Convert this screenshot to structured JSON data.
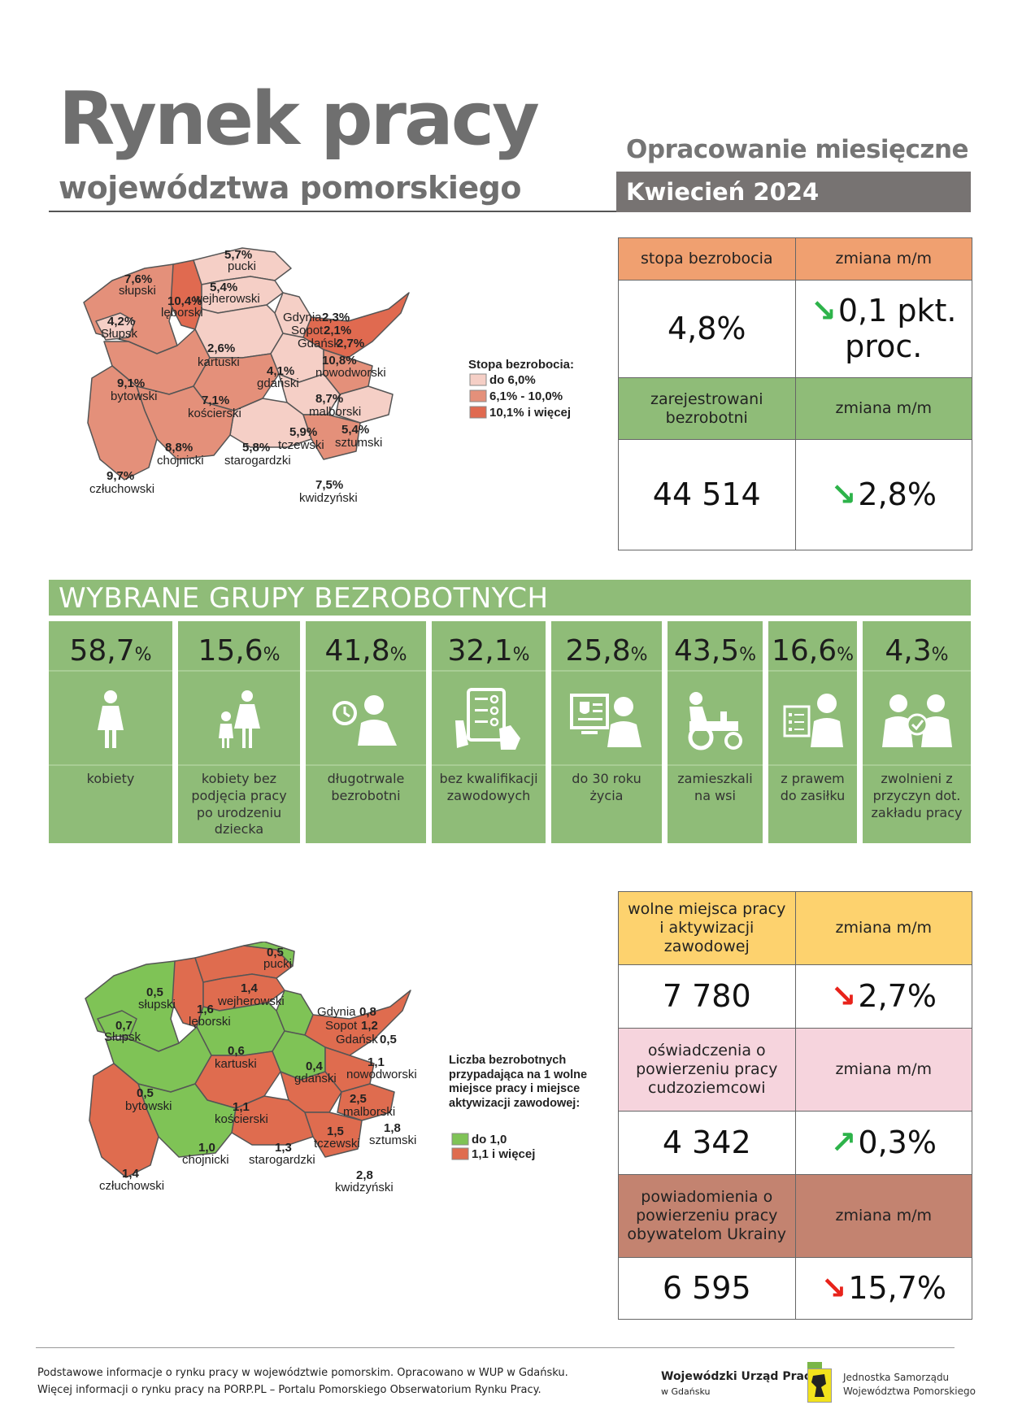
{
  "header": {
    "title": "Rynek pracy",
    "subtitle": "województwa pomorskiego",
    "report_type": "Opracowanie miesięczne",
    "month": "Kwiecień 2024"
  },
  "unemployment_table": {
    "rate_label": "stopa bezrobocia",
    "change_label": "zmiana m/m",
    "rate_value": "4,8%",
    "rate_change": "0,1 pkt. proc.",
    "registered_label": "zarejestrowani bezrobotni",
    "registered_change_label": "zmiana m/m",
    "registered_value": "44 514",
    "registered_change": "2,8%",
    "colors": {
      "orange": "#f0a070",
      "green": "#8fbc78",
      "arrow_down_green": "#2db34a"
    }
  },
  "map1": {
    "legend_title": "Stopa bezrobocia:",
    "legend": [
      "do 6,0%",
      "6,1% - 10,0%",
      "10,1% i więcej"
    ],
    "legend_colors": [
      "#f5cfc6",
      "#e4907a",
      "#e06a50"
    ],
    "regions": [
      {
        "name": "pucki",
        "value": "5,7%"
      },
      {
        "name": "wejherowski",
        "value": "5,4%"
      },
      {
        "name": "słupski",
        "value": "7,6%"
      },
      {
        "name": "lęborski",
        "value": "10,4%"
      },
      {
        "name": "Słupsk",
        "value": "4,2%"
      },
      {
        "name": "Gdynia",
        "value": "2,3%"
      },
      {
        "name": "Sopot",
        "value": "2,1%"
      },
      {
        "name": "Gdańsk",
        "value": "2,7%"
      },
      {
        "name": "kartuski",
        "value": "2,6%"
      },
      {
        "name": "nowodworski",
        "value": "10,8%"
      },
      {
        "name": "bytowski",
        "value": "9,1%"
      },
      {
        "name": "gdański",
        "value": "4,1%"
      },
      {
        "name": "kościerski",
        "value": "7,1%"
      },
      {
        "name": "malborski",
        "value": "8,7%"
      },
      {
        "name": "tczewski",
        "value": "5,9%"
      },
      {
        "name": "sztumski",
        "value": "5,4%"
      },
      {
        "name": "chojnicki",
        "value": "8,8%"
      },
      {
        "name": "starogardzki",
        "value": "5,8%"
      },
      {
        "name": "człuchowski",
        "value": "9,7%"
      },
      {
        "name": "kwidzyński",
        "value": "7,5%"
      }
    ]
  },
  "groups": {
    "title": "WYBRANE GRUPY BEZROBOTNYCH",
    "items": [
      {
        "value": "58,7",
        "unit": "%",
        "label": "kobiety",
        "icon": "woman-icon"
      },
      {
        "value": "15,6",
        "unit": "%",
        "label": "kobiety bez podjęcia pracy po urodzeniu dziecka",
        "icon": "mother-child-icon"
      },
      {
        "value": "41,8",
        "unit": "%",
        "label": "długotrwale bezrobotni",
        "icon": "clock-person-icon"
      },
      {
        "value": "32,1",
        "unit": "%",
        "label": "bez kwalifikacji zawodowych",
        "icon": "checklist-hand-icon"
      },
      {
        "value": "25,8",
        "unit": "%",
        "label": "do 30 roku życia",
        "icon": "young-person-computer-icon"
      },
      {
        "value": "43,5",
        "unit": "%",
        "label": "zamieszkali na wsi",
        "icon": "tractor-icon"
      },
      {
        "value": "16,6",
        "unit": "%",
        "label": "z prawem do zasiłku",
        "icon": "benefit-person-icon"
      },
      {
        "value": "4,3",
        "unit": "%",
        "label": "zwolnieni z przyczyn dot. zakładu pracy",
        "icon": "dismissal-icon"
      }
    ]
  },
  "offers_table": {
    "vacancies_label": "wolne miejsca pracy i aktywizacji zawodowej",
    "change_label": "zmiana m/m",
    "vacancies_value": "7 780",
    "vacancies_change": "2,7%",
    "declarations_label": "oświadczenia o powierzeniu pracy cudzoziemcowi",
    "declarations_value": "4 342",
    "declarations_change": "0,3%",
    "notifications_label": "powiadomienia o powierzeniu pracy obywatelom Ukrainy",
    "notifications_value": "6 595",
    "notifications_change": "15,7%",
    "colors": {
      "yellow": "#fdd26e",
      "pink": "#f6d4dd",
      "brown": "#c38370",
      "arrow_red": "#e8231b",
      "arrow_green": "#2db34a"
    }
  },
  "map2": {
    "legend_title": "Liczba bezrobotnych przypadająca na 1 wolne miejsce pracy i miejsce aktywizacji zawodowej:",
    "legend": [
      "do 1,0",
      "1,1 i więcej"
    ],
    "legend_colors": [
      "#7fc356",
      "#df6c4f"
    ],
    "regions": [
      {
        "name": "pucki",
        "value": "0,5"
      },
      {
        "name": "wejherowski",
        "value": "1,4"
      },
      {
        "name": "słupski",
        "value": "0,5"
      },
      {
        "name": "lęborski",
        "value": "1,6"
      },
      {
        "name": "Słupsk",
        "value": "0,7"
      },
      {
        "name": "Gdynia",
        "value": "0,8"
      },
      {
        "name": "Sopot",
        "value": "1,2"
      },
      {
        "name": "Gdańsk",
        "value": "0,5"
      },
      {
        "name": "kartuski",
        "value": "0,6"
      },
      {
        "name": "gdański",
        "value": "0,4"
      },
      {
        "name": "nowodworski",
        "value": "1,1"
      },
      {
        "name": "bytowski",
        "value": "0,5"
      },
      {
        "name": "kościerski",
        "value": "1,1"
      },
      {
        "name": "malborski",
        "value": "2,5"
      },
      {
        "name": "tczewski",
        "value": "1,5"
      },
      {
        "name": "sztumski",
        "value": "1,8"
      },
      {
        "name": "chojnicki",
        "value": "1,0"
      },
      {
        "name": "starogardzki",
        "value": "1,3"
      },
      {
        "name": "człuchowski",
        "value": "1,4"
      },
      {
        "name": "kwidzyński",
        "value": "2,8"
      }
    ]
  },
  "footer": {
    "line1": "Podstawowe informacje o rynku pracy w województwie pomorskim. Opracowano w WUP w Gdańsku.",
    "line2": "Więcej informacji o rynku pracy na PORP.PL – Portalu Pomorskiego Obserwatorium Rynku Pracy.",
    "wup_name": "Wojewódzki Urząd Pracy",
    "wup_city": "w Gdańsku",
    "js_line1": "Jednostka Samorządu",
    "js_line2": "Województwa Pomorskiego"
  }
}
